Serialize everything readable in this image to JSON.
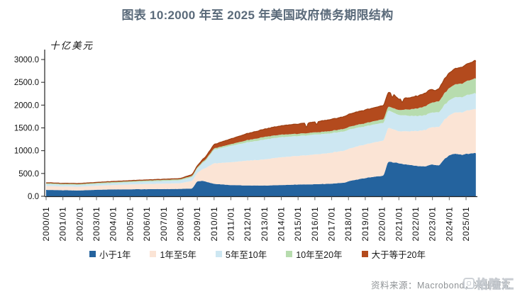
{
  "title": "图表 10:2000 年至 2025 年美国政府债务期限结构",
  "source": {
    "text": "资料来源：Macrobond，兴业研究"
  },
  "watermark": {
    "text": "格隆汇"
  },
  "colors": {
    "title": "#5a6a7a",
    "axis": "#222222",
    "tick": "#666666",
    "source_text": "#8f9396",
    "rust_edge": "#9c3f12"
  },
  "chart_data": {
    "type": "area",
    "stacked": true,
    "title": "图表 10:2000 年至 2025 年美国政府债务期限结构",
    "unit_label": "十亿美元",
    "xlabel": "",
    "ylabel": "十亿美元",
    "ylim": [
      0,
      3000
    ],
    "xlim_years": [
      2000,
      2025.6
    ],
    "grid": false,
    "legend_position": "bottom",
    "y_ticks": [
      0,
      500,
      1000,
      1500,
      2000,
      2500,
      3000
    ],
    "y_tick_labels": [
      "0.0",
      "500.0",
      "1000.0",
      "1500.0",
      "2000.0",
      "2500.0",
      "3000.0"
    ],
    "x_tick_years": [
      2000,
      2001,
      2002,
      2003,
      2004,
      2005,
      2006,
      2007,
      2008,
      2009,
      2010,
      2011,
      2012,
      2013,
      2014,
      2015,
      2016,
      2017,
      2018,
      2019,
      2020,
      2021,
      2022,
      2023,
      2024,
      2025
    ],
    "x_tick_labels": [
      "2000/01",
      "2001/01",
      "2002/01",
      "2003/01",
      "2004/01",
      "2005/01",
      "2006/01",
      "2007/01",
      "2008/01",
      "2009/01",
      "2010/01",
      "2011/01",
      "2012/01",
      "2013/01",
      "2014/01",
      "2015/01",
      "2016/01",
      "2017/01",
      "2018/01",
      "2019/01",
      "2020/01",
      "2021/01",
      "2022/01",
      "2023/01",
      "2024/01",
      "2025/01"
    ],
    "series_note": "keyframes are [year, billions-USD layer thickness]; monthly values interpolated between keyframes; stacked bottom-to-top in listed order",
    "series": [
      {
        "name": "小于1年",
        "color": "#24639e",
        "keyframes": [
          [
            2000,
            140
          ],
          [
            2001,
            132
          ],
          [
            2002,
            128
          ],
          [
            2003,
            142
          ],
          [
            2004,
            150
          ],
          [
            2005,
            152
          ],
          [
            2006,
            156
          ],
          [
            2007,
            156
          ],
          [
            2008,
            162
          ],
          [
            2008.7,
            168
          ],
          [
            2009,
            330
          ],
          [
            2009.3,
            340
          ],
          [
            2010,
            272
          ],
          [
            2011,
            246
          ],
          [
            2012,
            236
          ],
          [
            2013,
            234
          ],
          [
            2014,
            246
          ],
          [
            2015,
            256
          ],
          [
            2016,
            264
          ],
          [
            2017,
            276
          ],
          [
            2017.8,
            300
          ],
          [
            2018,
            330
          ],
          [
            2019,
            400
          ],
          [
            2020.1,
            455
          ],
          [
            2020.35,
            755
          ],
          [
            2020.7,
            745
          ],
          [
            2021,
            728
          ],
          [
            2021.5,
            690
          ],
          [
            2022,
            668
          ],
          [
            2022.6,
            655
          ],
          [
            2023,
            700
          ],
          [
            2023.4,
            672
          ],
          [
            2023.7,
            810
          ],
          [
            2024,
            900
          ],
          [
            2024.4,
            935
          ],
          [
            2024.8,
            905
          ],
          [
            2025,
            930
          ],
          [
            2025.55,
            952
          ]
        ]
      },
      {
        "name": "1年至5年",
        "color": "#fbe4d5",
        "keyframes": [
          [
            2000,
            85
          ],
          [
            2001,
            82
          ],
          [
            2002,
            82
          ],
          [
            2003,
            88
          ],
          [
            2004,
            96
          ],
          [
            2005,
            106
          ],
          [
            2006,
            114
          ],
          [
            2007,
            120
          ],
          [
            2008,
            126
          ],
          [
            2009,
            185
          ],
          [
            2009.5,
            300
          ],
          [
            2010,
            450
          ],
          [
            2011,
            502
          ],
          [
            2012,
            545
          ],
          [
            2013,
            575
          ],
          [
            2014,
            610
          ],
          [
            2015,
            630
          ],
          [
            2016,
            653
          ],
          [
            2017,
            680
          ],
          [
            2018,
            710
          ],
          [
            2019,
            740
          ],
          [
            2020,
            768
          ],
          [
            2020.5,
            735
          ],
          [
            2021,
            700
          ],
          [
            2022,
            760
          ],
          [
            2023,
            822
          ],
          [
            2024,
            880
          ],
          [
            2025,
            950
          ],
          [
            2025.55,
            968
          ]
        ]
      },
      {
        "name": "5年至10年",
        "color": "#cde7f2",
        "keyframes": [
          [
            2000,
            42
          ],
          [
            2001,
            40
          ],
          [
            2002,
            40
          ],
          [
            2003,
            42
          ],
          [
            2004,
            46
          ],
          [
            2005,
            50
          ],
          [
            2006,
            55
          ],
          [
            2007,
            60
          ],
          [
            2008,
            64
          ],
          [
            2009,
            95
          ],
          [
            2009.5,
            160
          ],
          [
            2010,
            300
          ],
          [
            2011,
            360
          ],
          [
            2012,
            402
          ],
          [
            2013,
            436
          ],
          [
            2014,
            440
          ],
          [
            2015,
            438
          ],
          [
            2016,
            435
          ],
          [
            2017,
            430
          ],
          [
            2018,
            420
          ],
          [
            2019,
            402
          ],
          [
            2020,
            390
          ],
          [
            2021,
            358
          ],
          [
            2022,
            332
          ],
          [
            2023,
            320
          ],
          [
            2024,
            330
          ],
          [
            2025,
            340
          ],
          [
            2025.55,
            345
          ]
        ]
      },
      {
        "name": "10年至20年",
        "color": "#b7dcae",
        "keyframes": [
          [
            2000,
            20
          ],
          [
            2002,
            20
          ],
          [
            2004,
            21
          ],
          [
            2006,
            22
          ],
          [
            2008,
            24
          ],
          [
            2009,
            26
          ],
          [
            2010,
            30
          ],
          [
            2011,
            36
          ],
          [
            2012,
            48
          ],
          [
            2013,
            58
          ],
          [
            2014,
            55
          ],
          [
            2015,
            50
          ],
          [
            2016,
            48
          ],
          [
            2017,
            50
          ],
          [
            2018,
            58
          ],
          [
            2019,
            68
          ],
          [
            2020,
            78
          ],
          [
            2020.4,
            86
          ],
          [
            2021,
            108
          ],
          [
            2022,
            160
          ],
          [
            2023,
            220
          ],
          [
            2024,
            268
          ],
          [
            2025,
            310
          ],
          [
            2025.55,
            325
          ]
        ]
      },
      {
        "name": "大于等于20年",
        "color": "#b34a1d",
        "keyframes": [
          [
            2000,
            10
          ],
          [
            2001,
            11
          ],
          [
            2002,
            12
          ],
          [
            2003,
            12
          ],
          [
            2004,
            13
          ],
          [
            2005,
            13
          ],
          [
            2006,
            14
          ],
          [
            2007,
            15
          ],
          [
            2008,
            16
          ],
          [
            2009,
            34
          ],
          [
            2010,
            85
          ],
          [
            2011,
            115
          ],
          [
            2012,
            145
          ],
          [
            2013,
            170
          ],
          [
            2014,
            195
          ],
          [
            2015,
            215
          ],
          [
            2015.42,
            218
          ],
          [
            2015.5,
            95
          ],
          [
            2015.58,
            220
          ],
          [
            2016,
            230
          ],
          [
            2016.05,
            232
          ],
          [
            2016.1,
            105
          ],
          [
            2016.16,
            232
          ],
          [
            2017,
            255
          ],
          [
            2018,
            275
          ],
          [
            2019,
            290
          ],
          [
            2020,
            300
          ],
          [
            2020.4,
            312
          ],
          [
            2020.55,
            310
          ],
          [
            2020.6,
            140
          ],
          [
            2020.66,
            305
          ],
          [
            2021,
            240
          ],
          [
            2021.13,
            245
          ],
          [
            2021.2,
            115
          ],
          [
            2021.27,
            242
          ],
          [
            2022,
            270
          ],
          [
            2022.9,
            300
          ],
          [
            2023.2,
            245
          ],
          [
            2023.5,
            300
          ],
          [
            2024,
            330
          ],
          [
            2025,
            372
          ],
          [
            2025.55,
            390
          ]
        ]
      }
    ]
  }
}
